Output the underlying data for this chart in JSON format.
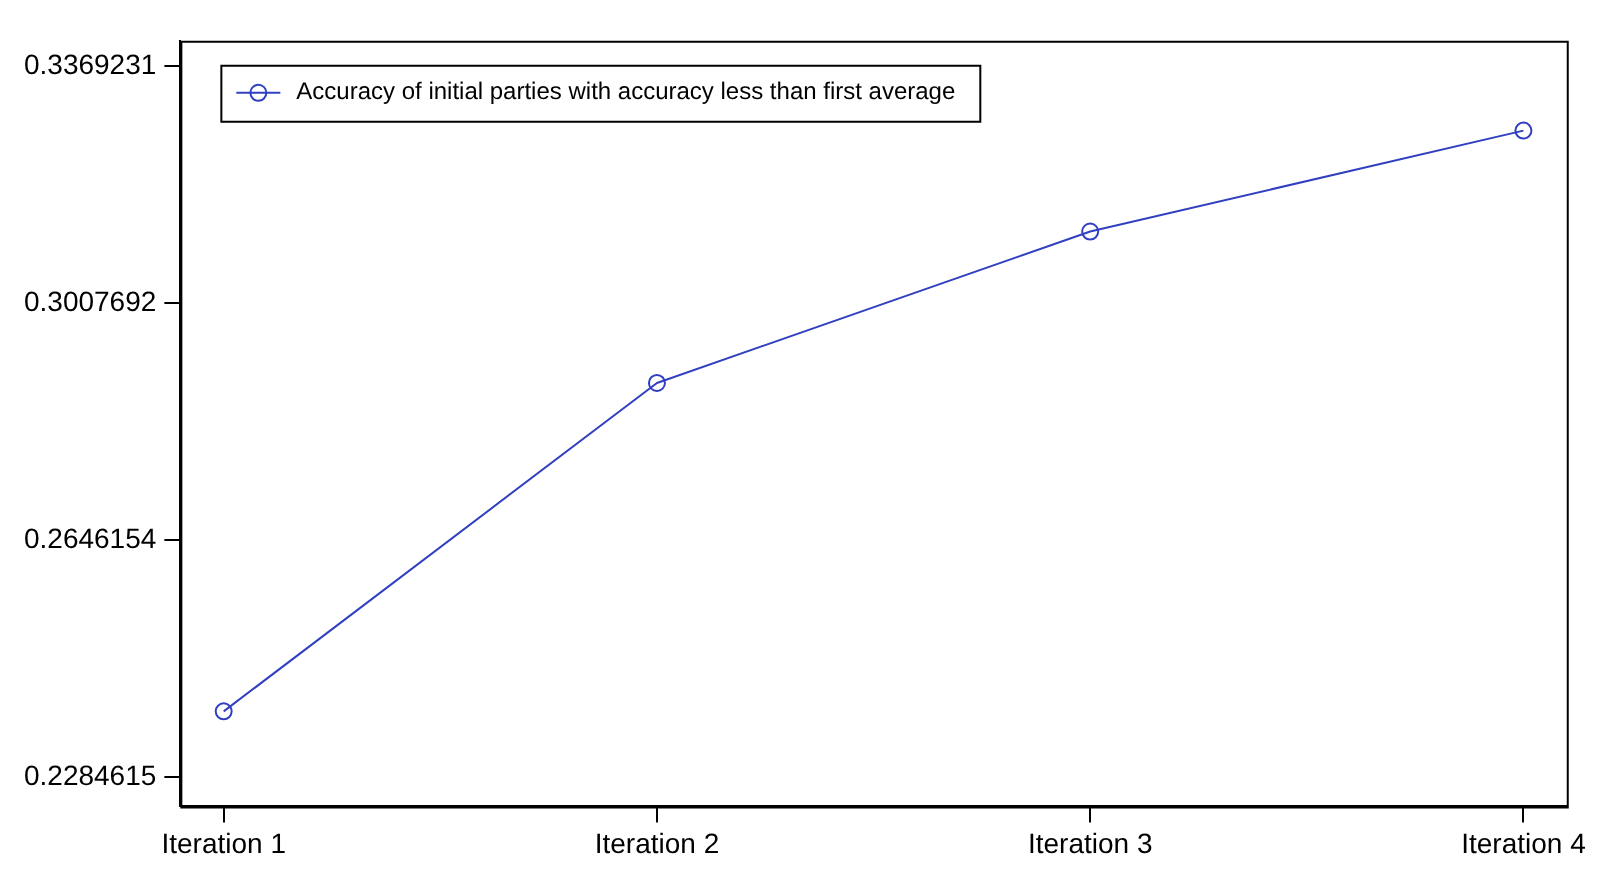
{
  "chart_data": {
    "type": "line",
    "categories": [
      "Iteration 1",
      "Iteration 2",
      "Iteration 3",
      "Iteration 4"
    ],
    "series": [
      {
        "name": "Accuracy of initial parties with accuracy less than first average",
        "color": "#3040c0",
        "values": [
          0.2385,
          0.2886,
          0.3117,
          0.3271
        ]
      }
    ],
    "ylim": [
      0.224,
      0.3408
    ],
    "yticks": [
      0.2284615,
      0.2646154,
      0.3007692,
      0.3369231
    ],
    "grid": false,
    "legend": "top left",
    "marker": "circle",
    "line_style": "solid"
  }
}
